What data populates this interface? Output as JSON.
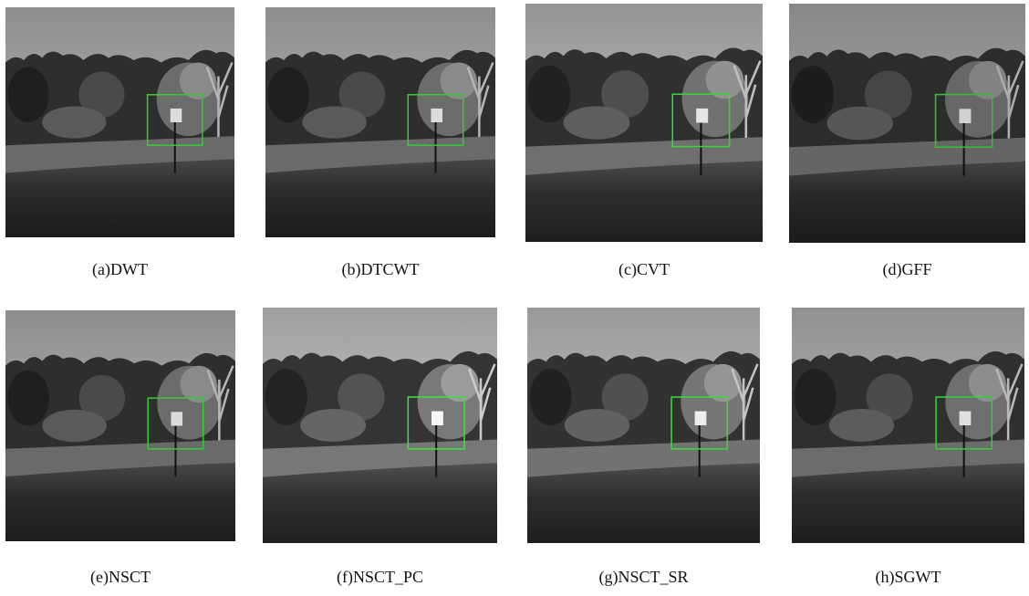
{
  "figures": [
    {
      "caption": "(a)DWT"
    },
    {
      "caption": "(b)DTCWT"
    },
    {
      "caption": "(c)CVT"
    },
    {
      "caption": "(d)GFF"
    },
    {
      "caption": "(e)NSCT"
    },
    {
      "caption": "(f)NSCT_PC"
    },
    {
      "caption": "(g)NSCT_SR"
    },
    {
      "caption": "(h)SGWT"
    }
  ]
}
